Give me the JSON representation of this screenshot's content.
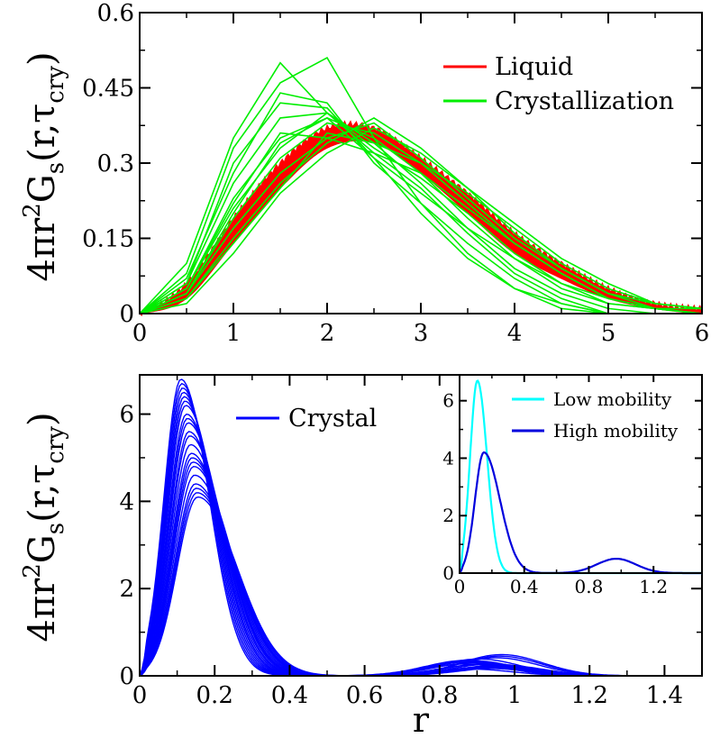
{
  "colors": {
    "liquid": "#ff0000",
    "crystallization": "#00ee00",
    "crystal": "#0000ff",
    "low_mobility": "#00ffff",
    "high_mobility": "#0000dd"
  },
  "chart_data": [
    {
      "id": "top",
      "type": "line",
      "ylabel": {
        "base": "4πr",
        "sup": "2",
        "g": "G",
        "gsub": "s",
        "args": "(r,τ",
        "argsub": "cry",
        "close": ")"
      },
      "xlim": [
        0,
        6
      ],
      "ylim": [
        0,
        0.6
      ],
      "xticks": [
        "0",
        "1",
        "2",
        "3",
        "4",
        "5",
        "6"
      ],
      "yticks": [
        "0",
        "0.15",
        "0.3",
        "0.45",
        "0.6"
      ],
      "legend": [
        "Liquid",
        "Crystallization"
      ],
      "liquid_band": {
        "x": [
          0,
          0.5,
          1.0,
          1.5,
          2.0,
          2.5,
          3.0,
          3.5,
          4.0,
          4.5,
          5.0,
          5.5,
          6.0
        ],
        "lo": [
          0,
          0.03,
          0.14,
          0.25,
          0.33,
          0.34,
          0.28,
          0.2,
          0.12,
          0.07,
          0.03,
          0.01,
          0.0
        ],
        "hi": [
          0,
          0.06,
          0.19,
          0.3,
          0.37,
          0.37,
          0.31,
          0.24,
          0.16,
          0.1,
          0.05,
          0.02,
          0.01
        ]
      },
      "crystallization_x": [
        0,
        0.5,
        1.0,
        1.5,
        2.0,
        2.5,
        3.0,
        3.5,
        4.0,
        4.5,
        5.0,
        5.5,
        6.0
      ],
      "crystallization_series": [
        [
          0,
          0.1,
          0.35,
          0.5,
          0.4,
          0.32,
          0.25,
          0.16,
          0.08,
          0.03,
          0.0,
          0.0,
          0.0
        ],
        [
          0,
          0.08,
          0.33,
          0.46,
          0.51,
          0.35,
          0.22,
          0.12,
          0.05,
          0.01,
          0.0,
          0.0,
          0.0
        ],
        [
          0,
          0.07,
          0.28,
          0.44,
          0.42,
          0.3,
          0.22,
          0.14,
          0.07,
          0.02,
          0.0,
          0.0,
          0.0
        ],
        [
          0,
          0.06,
          0.26,
          0.39,
          0.4,
          0.34,
          0.26,
          0.17,
          0.09,
          0.04,
          0.01,
          0.0,
          0.0
        ],
        [
          0,
          0.05,
          0.23,
          0.35,
          0.39,
          0.35,
          0.28,
          0.19,
          0.11,
          0.05,
          0.02,
          0.01,
          0.0
        ],
        [
          0,
          0.04,
          0.19,
          0.31,
          0.38,
          0.36,
          0.3,
          0.22,
          0.14,
          0.08,
          0.03,
          0.01,
          0.0
        ],
        [
          0,
          0.04,
          0.17,
          0.28,
          0.35,
          0.38,
          0.31,
          0.23,
          0.15,
          0.09,
          0.04,
          0.01,
          0.01
        ],
        [
          0,
          0.03,
          0.15,
          0.26,
          0.34,
          0.39,
          0.33,
          0.25,
          0.16,
          0.09,
          0.04,
          0.02,
          0.01
        ],
        [
          0,
          0.03,
          0.14,
          0.25,
          0.36,
          0.34,
          0.3,
          0.24,
          0.17,
          0.1,
          0.05,
          0.02,
          0.01
        ],
        [
          0,
          0.05,
          0.21,
          0.33,
          0.4,
          0.33,
          0.27,
          0.2,
          0.12,
          0.06,
          0.02,
          0.01,
          0.0
        ],
        [
          0,
          0.04,
          0.2,
          0.34,
          0.39,
          0.31,
          0.24,
          0.17,
          0.11,
          0.06,
          0.03,
          0.01,
          0.0
        ],
        [
          0,
          0.02,
          0.12,
          0.24,
          0.32,
          0.37,
          0.32,
          0.25,
          0.18,
          0.11,
          0.06,
          0.02,
          0.01
        ],
        [
          0,
          0.06,
          0.3,
          0.42,
          0.41,
          0.31,
          0.2,
          0.11,
          0.05,
          0.02,
          0.0,
          0.0,
          0.0
        ],
        [
          0,
          0.05,
          0.22,
          0.36,
          0.35,
          0.32,
          0.28,
          0.21,
          0.14,
          0.08,
          0.03,
          0.01,
          0.0
        ]
      ]
    },
    {
      "id": "bottom",
      "type": "line",
      "ylabel": {
        "base": "4πr",
        "sup": "2",
        "g": "G",
        "gsub": "s",
        "args": "(r,τ",
        "argsub": "cry",
        "close": ")"
      },
      "xlabel": "r",
      "xlim": [
        0,
        1.5
      ],
      "ylim": [
        0,
        6.9
      ],
      "xticks": [
        "0",
        "0.2",
        "0.4",
        "0.6",
        "0.8",
        "1",
        "1.2",
        "1.4"
      ],
      "yticks": [
        "0",
        "2",
        "4",
        "6"
      ],
      "legend": [
        "Crystal"
      ],
      "crystal_peaks": [
        6.8,
        6.7,
        6.6,
        6.5,
        6.4,
        6.3,
        6.2,
        6.0,
        5.9,
        5.8,
        5.6,
        5.5,
        5.3,
        5.1,
        5.0,
        4.9,
        4.8,
        4.6,
        4.4,
        4.3,
        4.2,
        4.1
      ],
      "crystal_second_peak": [
        0.5,
        0.45,
        0.4,
        0.35,
        0.3
      ]
    },
    {
      "id": "inset",
      "type": "line",
      "xlim": [
        0,
        1.5
      ],
      "ylim": [
        0,
        6.9
      ],
      "xticks": [
        "0",
        "0.4",
        "0.8",
        "1.2"
      ],
      "yticks": [
        "0",
        "2",
        "4",
        "6"
      ],
      "legend": [
        "Low mobility",
        "High mobility"
      ],
      "low_mobility_peak": 6.7,
      "high_mobility_peak": 4.2,
      "high_mobility_second_peak": 0.5
    }
  ]
}
